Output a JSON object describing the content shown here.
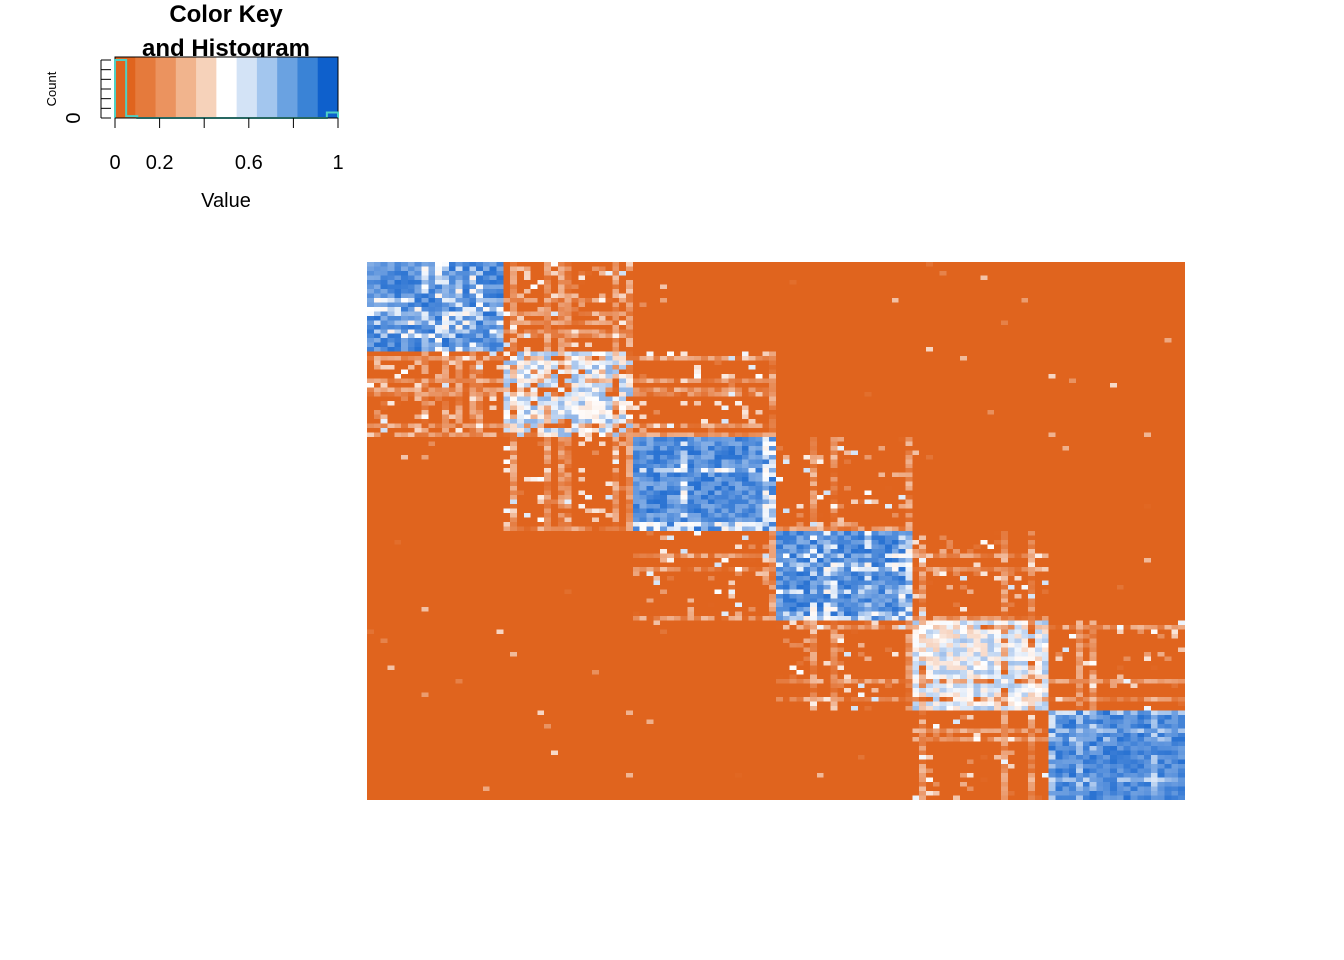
{
  "chart_data": [
    {
      "type": "heatmap",
      "role": "color-key-histogram",
      "title": "Color Key\nand Histogram",
      "title_lines": [
        "Color Key",
        "and Histogram"
      ],
      "xlabel": "Value",
      "ylabel": "Count",
      "xlim": [
        0,
        1
      ],
      "x_ticks": [
        0,
        0.2,
        0.6,
        1
      ],
      "x_tick_labels": [
        "0",
        "0.2",
        "0.6",
        "1"
      ],
      "y_tick_labels": [
        "0"
      ],
      "color_breaks": 10,
      "palette": [
        "#e0641e",
        "#e57a3c",
        "#eb935f",
        "#f1b48d",
        "#f6d2ba",
        "#ffffff",
        "#d3e3f6",
        "#a3c6ee",
        "#6aa2e1",
        "#3a83d6",
        "#0e60cc"
      ],
      "histogram_color": "#4fd1c5",
      "histogram_bins": [
        0,
        0.05,
        0.1,
        0.95,
        1
      ],
      "histogram_fraction": [
        0.95,
        0.03,
        0.0,
        0.09
      ]
    },
    {
      "type": "heatmap",
      "role": "consensus-matrix",
      "title": "",
      "xlabel": "",
      "ylabel": "",
      "n_samples": 120,
      "clusters": [
        {
          "start": 0,
          "end": 20,
          "within": 0.95,
          "noise": 0.2
        },
        {
          "start": 20,
          "end": 39,
          "within": 0.75,
          "noise": 0.35
        },
        {
          "start": 39,
          "end": 60,
          "within": 0.95,
          "noise": 0.2
        },
        {
          "start": 60,
          "end": 80,
          "within": 0.95,
          "noise": 0.2
        },
        {
          "start": 80,
          "end": 100,
          "within": 0.7,
          "noise": 0.35
        },
        {
          "start": 100,
          "end": 120,
          "within": 0.95,
          "noise": 0.15
        }
      ],
      "adjacent_overlap": 0.3,
      "low_color": "#e0641e",
      "mid_color": "#ffffff",
      "high_color": "#0e60cc"
    }
  ]
}
